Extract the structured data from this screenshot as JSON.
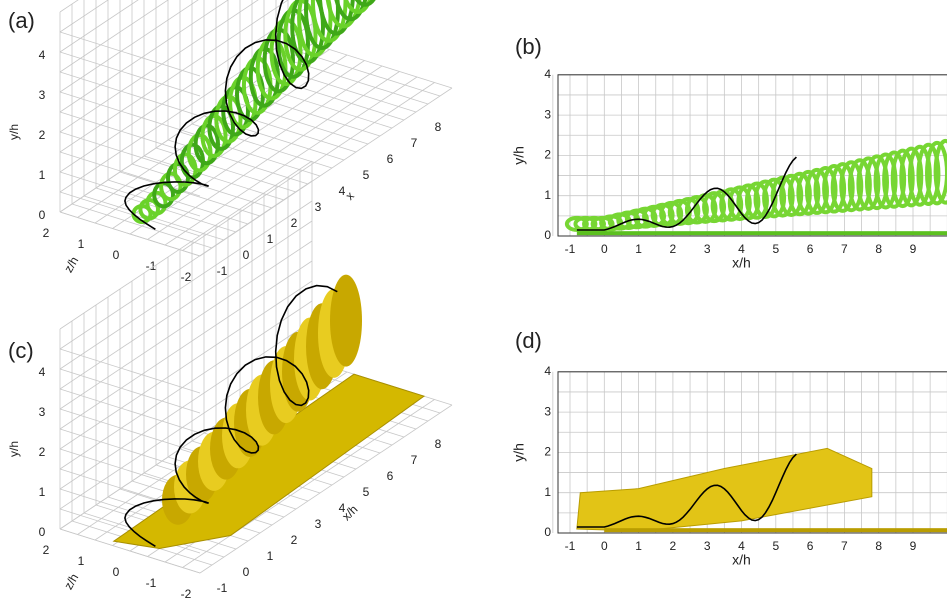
{
  "panels": [
    {
      "label": "(a)",
      "y_axis_label": "y/h",
      "z_axis_label": "z/h",
      "x_axis_label": "x",
      "y_ticks": [
        "0",
        "1",
        "2",
        "3",
        "4"
      ],
      "z_ticks": [
        "2",
        "1",
        "0",
        "-1",
        "-2"
      ],
      "x_ticks": [
        "-1",
        "0",
        "1",
        "2",
        "3",
        "4",
        "5",
        "6",
        "7",
        "8"
      ]
    },
    {
      "label": "(b)",
      "y_axis_label": "y/h",
      "x_axis_label": "x/h",
      "y_ticks": [
        "0",
        "1",
        "2",
        "3",
        "4"
      ],
      "x_ticks": [
        "-1",
        "0",
        "1",
        "2",
        "3",
        "4",
        "5",
        "6",
        "7",
        "8",
        "9"
      ]
    },
    {
      "label": "(c)",
      "y_axis_label": "y/h",
      "z_axis_label": "z/h",
      "x_axis_label": "x/h",
      "y_ticks": [
        "0",
        "1",
        "2",
        "3",
        "4"
      ],
      "z_ticks": [
        "2",
        "1",
        "0",
        "-1",
        "-2"
      ],
      "x_ticks": [
        "-1",
        "0",
        "1",
        "2",
        "3",
        "4",
        "5",
        "6",
        "7",
        "8"
      ]
    },
    {
      "label": "(d)",
      "y_axis_label": "y/h",
      "x_axis_label": "x/h",
      "y_ticks": [
        "0",
        "1",
        "2",
        "3",
        "4"
      ],
      "x_ticks": [
        "-1",
        "0",
        "1",
        "2",
        "3",
        "4",
        "5",
        "6",
        "7",
        "8",
        "9"
      ]
    }
  ]
}
